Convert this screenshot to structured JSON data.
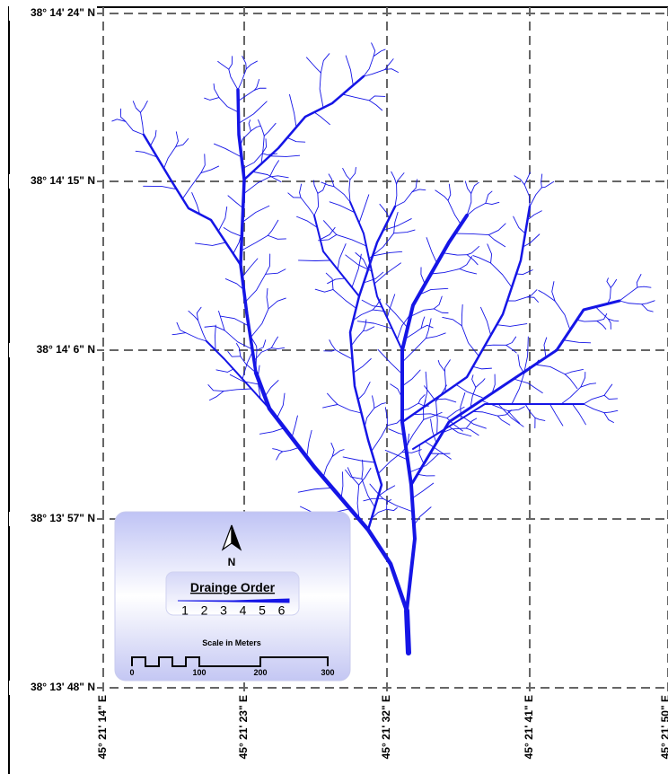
{
  "map": {
    "latitude_labels": [
      "38° 14' 24\" N",
      "38° 14' 15\" N",
      "38° 14' 6\" N",
      "38° 13' 57\" N",
      "38° 13' 48\" N"
    ],
    "longitude_labels": [
      "45° 21' 14\" E",
      "45° 21' 23\" E",
      "45° 21' 32\" E",
      "45° 21' 41\" E",
      "45° 21' 50\" E"
    ],
    "north_label": "N",
    "legend": {
      "title": "Drainge Order",
      "orders": [
        1,
        2,
        3,
        4,
        5,
        6
      ]
    },
    "scale": {
      "title": "Scale in Meters",
      "ticks": [
        0,
        100,
        200,
        300
      ]
    }
  }
}
